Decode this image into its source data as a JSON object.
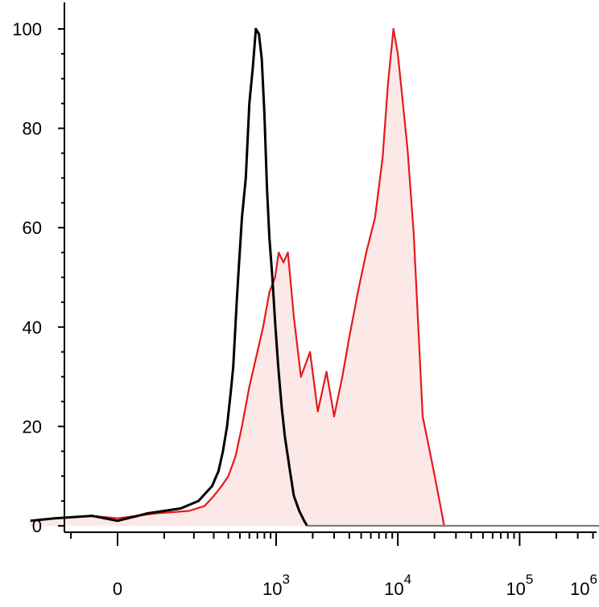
{
  "chart_data": {
    "type": "area",
    "x_scale": "biexponential",
    "xlim": [
      -300,
      1000000
    ],
    "ylim": [
      0,
      100
    ],
    "grid": false,
    "legend": "none",
    "y_ticks": [
      0,
      20,
      40,
      60,
      80,
      100
    ],
    "y_tick_labels": [
      "0",
      "20",
      "40",
      "60",
      "80",
      "100"
    ],
    "x_ticks": [
      0,
      1000,
      10000,
      100000,
      1000000
    ],
    "x_tick_labels": [
      {
        "base": "0",
        "exp": ""
      },
      {
        "base": "10",
        "exp": "3"
      },
      {
        "base": "10",
        "exp": "4"
      },
      {
        "base": "10",
        "exp": "5"
      },
      {
        "base": "10",
        "exp": "6"
      }
    ],
    "series": [
      {
        "color": "#000000",
        "fill": "none",
        "points": [
          [
            -250,
            1
          ],
          [
            -150,
            1.5
          ],
          [
            -50,
            2
          ],
          [
            0,
            1
          ],
          [
            60,
            2.5
          ],
          [
            150,
            3.5
          ],
          [
            220,
            5
          ],
          [
            290,
            8
          ],
          [
            330,
            11
          ],
          [
            360,
            15
          ],
          [
            390,
            20
          ],
          [
            420,
            27
          ],
          [
            440,
            32
          ],
          [
            470,
            45
          ],
          [
            490,
            52
          ],
          [
            520,
            62
          ],
          [
            560,
            70
          ],
          [
            600,
            85
          ],
          [
            640,
            92
          ],
          [
            680,
            100
          ],
          [
            720,
            99
          ],
          [
            760,
            94
          ],
          [
            800,
            83
          ],
          [
            840,
            68
          ],
          [
            880,
            58
          ],
          [
            930,
            50
          ],
          [
            980,
            41
          ],
          [
            1040,
            32
          ],
          [
            1110,
            24
          ],
          [
            1180,
            18
          ],
          [
            1300,
            11
          ],
          [
            1400,
            6
          ],
          [
            1550,
            3
          ],
          [
            1700,
            1
          ],
          [
            1800,
            0
          ]
        ]
      },
      {
        "color": "#7f7f7f",
        "fill": "none",
        "points": [
          [
            1800,
            0
          ],
          [
            3000,
            0
          ],
          [
            10000,
            0
          ],
          [
            100000,
            0
          ],
          [
            1000000,
            0
          ]
        ]
      },
      {
        "color": "#e41a1c",
        "fill": "#fde8e8",
        "points": [
          [
            -250,
            1
          ],
          [
            -150,
            1.5
          ],
          [
            -50,
            2
          ],
          [
            0,
            1.5
          ],
          [
            80,
            2.5
          ],
          [
            180,
            3
          ],
          [
            250,
            4
          ],
          [
            300,
            6
          ],
          [
            350,
            8
          ],
          [
            400,
            10
          ],
          [
            460,
            14
          ],
          [
            520,
            20
          ],
          [
            600,
            28
          ],
          [
            700,
            35
          ],
          [
            780,
            40
          ],
          [
            880,
            47
          ],
          [
            980,
            50
          ],
          [
            1050,
            55
          ],
          [
            1150,
            53
          ],
          [
            1250,
            55
          ],
          [
            1400,
            42
          ],
          [
            1600,
            30
          ],
          [
            1900,
            35
          ],
          [
            2200,
            23
          ],
          [
            2600,
            31
          ],
          [
            3000,
            22
          ],
          [
            3500,
            30
          ],
          [
            4000,
            38
          ],
          [
            4700,
            47
          ],
          [
            5500,
            55
          ],
          [
            6500,
            62
          ],
          [
            7500,
            74
          ],
          [
            8300,
            89
          ],
          [
            9200,
            100
          ],
          [
            10000,
            95
          ],
          [
            10800,
            87
          ],
          [
            12000,
            76
          ],
          [
            13500,
            59
          ],
          [
            16000,
            22
          ],
          [
            19000,
            13
          ],
          [
            22000,
            5
          ],
          [
            24000,
            0
          ]
        ]
      }
    ]
  }
}
